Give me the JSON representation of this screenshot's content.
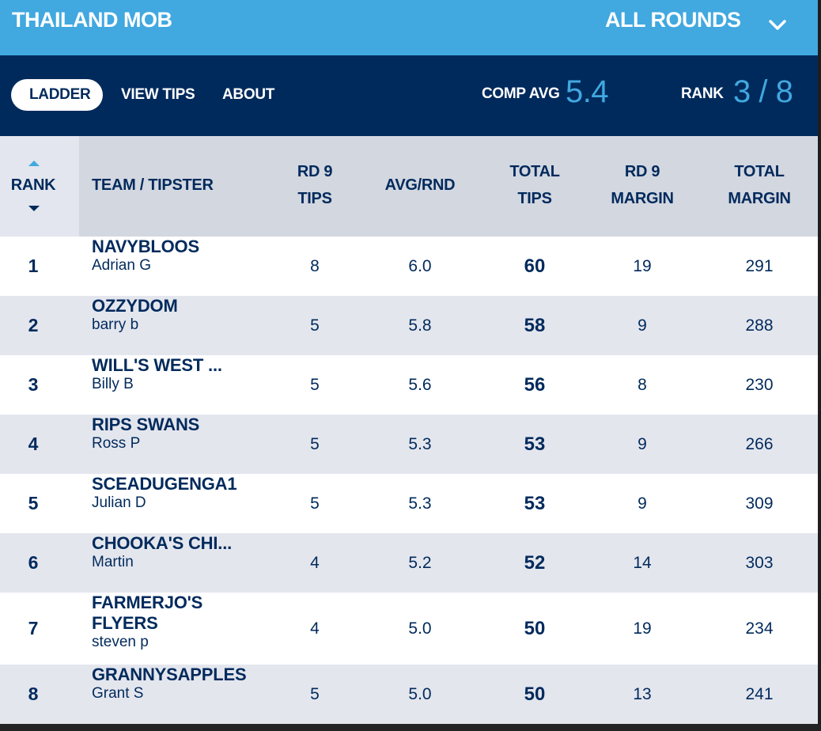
{
  "header": {
    "comp_name": "THAILAND MOB",
    "round_selector": "ALL ROUNDS"
  },
  "nav": {
    "tabs": [
      "LADDER",
      "VIEW TIPS",
      "ABOUT"
    ],
    "comp_avg_label": "COMP AVG",
    "comp_avg_value": "5.4",
    "rank_label": "RANK",
    "rank_value": "3 / 8"
  },
  "table": {
    "columns": {
      "rank": "RANK",
      "team": "TEAM / TIPSTER",
      "rd_tips_1": "RD 9",
      "rd_tips_2": "TIPS",
      "avg": "AVG/RND",
      "total_1": "TOTAL",
      "total_2": "TIPS",
      "rd_margin_1": "RD 9",
      "rd_margin_2": "MARGIN",
      "total_margin_1": "TOTAL",
      "total_margin_2": "MARGIN"
    },
    "rows": [
      {
        "rank": "1",
        "team": "NAVYBLOOS",
        "tipster": "Adrian G",
        "rd_tips": "8",
        "avg": "6.0",
        "total": "60",
        "rd_margin": "19",
        "total_margin": "291"
      },
      {
        "rank": "2",
        "team": "OZZYDOM",
        "tipster": "barry b",
        "rd_tips": "5",
        "avg": "5.8",
        "total": "58",
        "rd_margin": "9",
        "total_margin": "288"
      },
      {
        "rank": "3",
        "team": "WILL'S WEST ...",
        "tipster": "Billy B",
        "rd_tips": "5",
        "avg": "5.6",
        "total": "56",
        "rd_margin": "8",
        "total_margin": "230"
      },
      {
        "rank": "4",
        "team": "RIPS SWANS",
        "tipster": "Ross P",
        "rd_tips": "5",
        "avg": "5.3",
        "total": "53",
        "rd_margin": "9",
        "total_margin": "266"
      },
      {
        "rank": "5",
        "team": "SCEADUGENGA1",
        "tipster": "Julian D",
        "rd_tips": "5",
        "avg": "5.3",
        "total": "53",
        "rd_margin": "9",
        "total_margin": "309"
      },
      {
        "rank": "6",
        "team": "CHOOKA'S CHI...",
        "tipster": "Martin",
        "rd_tips": "4",
        "avg": "5.2",
        "total": "52",
        "rd_margin": "14",
        "total_margin": "303"
      },
      {
        "rank": "7",
        "team": "FARMERJO'S FLYERS",
        "tipster": "steven p",
        "rd_tips": "4",
        "avg": "5.0",
        "total": "50",
        "rd_margin": "19",
        "total_margin": "234"
      },
      {
        "rank": "8",
        "team": "GRANNYSAPPLES",
        "tipster": "Grant S",
        "rd_tips": "5",
        "avg": "5.0",
        "total": "50",
        "rd_margin": "13",
        "total_margin": "241"
      }
    ]
  }
}
